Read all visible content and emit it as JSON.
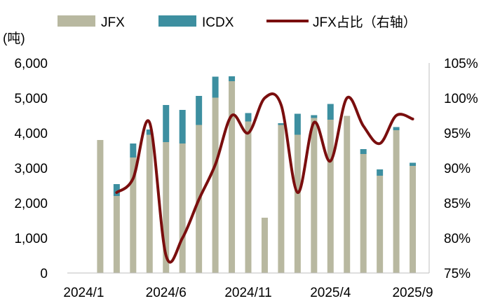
{
  "chart_data": {
    "type": "bar",
    "y_unit_label": "(吨)",
    "x_tick_labels": [
      "2024/1",
      "2024/6",
      "2024/11",
      "2025/4",
      "2025/9"
    ],
    "y_ticks": [
      "0",
      "1,000",
      "2,000",
      "3,000",
      "4,000",
      "5,000",
      "6,000"
    ],
    "y2_ticks": [
      "75%",
      "80%",
      "85%",
      "90%",
      "95%",
      "100%",
      "105%"
    ],
    "ylim": [
      0,
      6000
    ],
    "y2lim": [
      75,
      105
    ],
    "legend_placement": "top",
    "categories": [
      "2024-01",
      "2024-02",
      "2024-03",
      "2024-04",
      "2024-05",
      "2024-06",
      "2024-07",
      "2024-08",
      "2024-09",
      "2024-10",
      "2024-11",
      "2024-12",
      "2025-01",
      "2025-02",
      "2025-03",
      "2025-04",
      "2025-05",
      "2025-06",
      "2025-07",
      "2025-08",
      "2025-09"
    ],
    "series": [
      {
        "name": "JFX",
        "type": "bar",
        "axis": "left",
        "color": "#b8b8a0",
        "values": [
          null,
          3800,
          2200,
          3300,
          3950,
          3740,
          3700,
          4230,
          5010,
          5480,
          4330,
          1580,
          4230,
          3950,
          4430,
          4380,
          4490,
          3400,
          2780,
          4080,
          3060
        ]
      },
      {
        "name": "ICDX",
        "type": "bar",
        "axis": "left",
        "color": "#3d8fa0",
        "values": [
          null,
          0,
          340,
          400,
          150,
          1060,
          960,
          830,
          600,
          140,
          240,
          0,
          50,
          600,
          80,
          450,
          0,
          140,
          180,
          90,
          90
        ]
      },
      {
        "name": "JFX占比（右轴）",
        "type": "line",
        "axis": "right",
        "color": "#7a0e0e",
        "values": [
          null,
          null,
          86.5,
          88.5,
          96.5,
          77.5,
          80.0,
          85.5,
          90.5,
          97.5,
          95.0,
          100.0,
          99.0,
          86.5,
          96.5,
          91.0,
          100.0,
          96.0,
          93.5,
          97.5,
          97.0
        ]
      }
    ]
  }
}
